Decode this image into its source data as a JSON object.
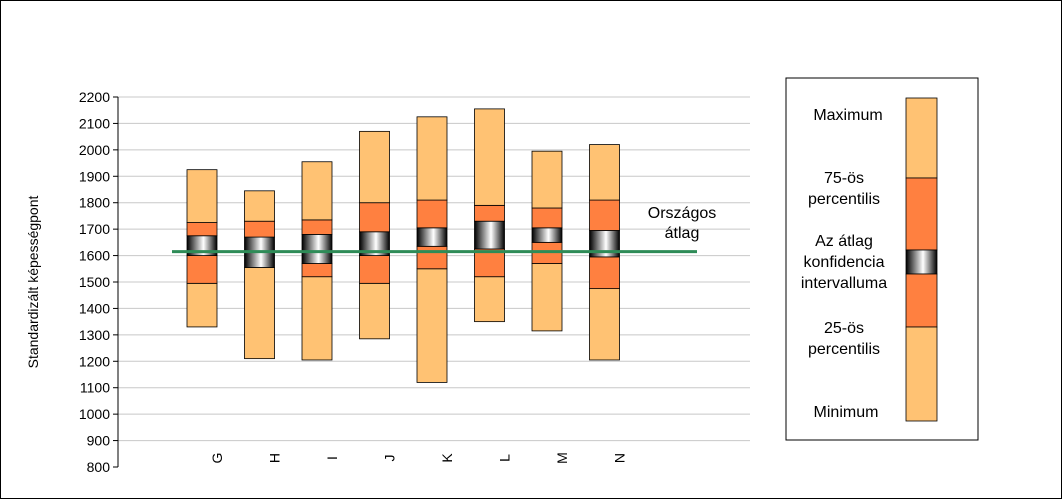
{
  "chart_data": {
    "type": "box",
    "ylabel": "Standardizált képességpont",
    "ylim": [
      800,
      2200
    ],
    "yticks": [
      800,
      900,
      1000,
      1100,
      1200,
      1300,
      1400,
      1500,
      1600,
      1700,
      1800,
      1900,
      2000,
      2100,
      2200
    ],
    "grid": true,
    "categories": [
      "G",
      "H",
      "I",
      "J",
      "K",
      "L",
      "M",
      "N"
    ],
    "boxes": [
      {
        "category": "G",
        "min": 1330,
        "p25": 1495,
        "ci_low": 1600,
        "ci_high": 1675,
        "p75": 1725,
        "max": 1925
      },
      {
        "category": "H",
        "min": 1210,
        "p25": 1555,
        "ci_low": 1555,
        "ci_high": 1670,
        "p75": 1730,
        "max": 1845
      },
      {
        "category": "I",
        "min": 1205,
        "p25": 1520,
        "ci_low": 1570,
        "ci_high": 1680,
        "p75": 1735,
        "max": 1955
      },
      {
        "category": "J",
        "min": 1285,
        "p25": 1495,
        "ci_low": 1600,
        "ci_high": 1690,
        "p75": 1800,
        "max": 2070
      },
      {
        "category": "K",
        "min": 1120,
        "p25": 1550,
        "ci_low": 1635,
        "ci_high": 1705,
        "p75": 1810,
        "max": 2125
      },
      {
        "category": "L",
        "min": 1350,
        "p25": 1520,
        "ci_low": 1625,
        "ci_high": 1730,
        "p75": 1790,
        "max": 2155
      },
      {
        "category": "M",
        "min": 1315,
        "p25": 1570,
        "ci_low": 1650,
        "ci_high": 1705,
        "p75": 1780,
        "max": 1995
      },
      {
        "category": "N",
        "min": 1205,
        "p25": 1475,
        "ci_low": 1595,
        "ci_high": 1695,
        "p75": 1810,
        "max": 2020
      }
    ],
    "reference_line": {
      "label": "Országos átlag",
      "value": 1615,
      "color": "#2e8b57"
    },
    "colors": {
      "outer": "#ffc273",
      "inner": "#ff8040",
      "ci_edge": "#000000",
      "ci_mid": "#ffffff",
      "line": "#2e8b57"
    }
  },
  "legend": {
    "maximum": "Maximum",
    "p75": "75-ös percentilis",
    "ci": "Az átlag konfidencia intervalluma",
    "p25": "25-ös percentilis",
    "minimum": "Minimum"
  }
}
